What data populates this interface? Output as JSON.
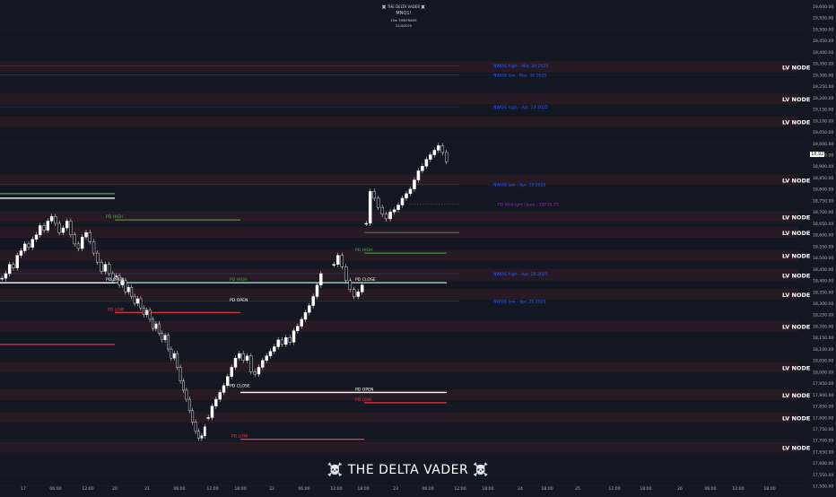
{
  "header": {
    "title": "☠️ THE DELTA VADER ☠️",
    "symbol": "MNQ1!",
    "timeframe": "15m TIMEFRAME",
    "date": "22/4/2025"
  },
  "brand": "☠️ THE DELTA VADER ☠️",
  "colors": {
    "background": "#131722",
    "candle": "#ffffff",
    "green_level": "#4caf50",
    "red_level": "#f23645",
    "white_level": "#ffffff",
    "blue_text": "#2962ff",
    "purple": "#9c27b0",
    "lv_zone": "#3b1d27",
    "grid": "#1e222d"
  },
  "chart_data": {
    "type": "candlestick",
    "symbol": "MNQ1!",
    "timeframe": "15m",
    "ylim": [
      17500,
      19600
    ],
    "y_ticks": [
      "19,600.00",
      "19,550.00",
      "19,500.00",
      "19,450.00",
      "19,400.00",
      "19,350.00",
      "19,300.00",
      "19,250.00",
      "19,200.00",
      "19,150.00",
      "19,100.00",
      "19,050.00",
      "19,000.00",
      "18,950.00",
      "18,900.00",
      "18,850.00",
      "18,800.00",
      "18,750.00",
      "18,700.00",
      "18,650.00",
      "18,600.00",
      "18,550.00",
      "18,500.00",
      "18,450.00",
      "18,400.00",
      "18,350.00",
      "18,300.00",
      "18,250.00",
      "18,200.00",
      "18,150.00",
      "18,100.00",
      "18,050.00",
      "18,000.00",
      "17,950.00",
      "17,900.00",
      "17,850.00",
      "17,800.00",
      "17,750.00",
      "17,700.00",
      "17,650.00",
      "17,600.00",
      "17,550.00",
      "17,500.00"
    ],
    "x_ticks": [
      "17",
      "06:00",
      "12:00",
      "20",
      "21",
      "06:00",
      "12:00",
      "18:00",
      "22",
      "06:00",
      "12:00",
      "18:00",
      "23",
      "06:00",
      "12:00",
      "18:00",
      "24",
      "18:00",
      "25",
      "12:00",
      "18:00",
      "26",
      "06:00",
      "12:00",
      "18:00",
      "12:00",
      "18:00",
      "27",
      "28",
      "06:00"
    ],
    "last_price": "18,92",
    "price_path": [
      [
        18410,
        18430,
        18470,
        18455,
        18510,
        18530,
        18560,
        18545,
        18580,
        18600,
        18640,
        18620,
        18660,
        18680,
        18650,
        18610,
        18630,
        18660,
        18600,
        18560,
        18540,
        18590,
        18610,
        18570,
        18520,
        18480,
        18440,
        18470,
        18430,
        18400
      ],
      [
        18420,
        18380,
        18400,
        18350,
        18370,
        18330,
        18300,
        18320,
        18280,
        18250,
        18270,
        18230,
        18190,
        18210,
        18170,
        18140,
        18160,
        18100,
        18060,
        18080,
        18020,
        17960,
        17920,
        17880,
        17830,
        17780,
        17740,
        17710,
        17720,
        17760
      ],
      [
        17800,
        17850,
        17880,
        17910,
        17940,
        17980,
        18020,
        18060,
        18080,
        18050,
        18070,
        18000,
        17990,
        18020,
        18050,
        18070,
        18090,
        18110,
        18140,
        18120,
        18150,
        18130,
        18180,
        18200,
        18230,
        18260,
        18290,
        18330,
        18380,
        18430
      ],
      [
        18470,
        18510,
        18460,
        18400,
        18360,
        18330,
        18350,
        18380
      ],
      [
        18650,
        18790,
        18760,
        18720,
        18690,
        18670,
        18700,
        18710,
        18730,
        18760,
        18780,
        18800,
        18840,
        18880,
        18900,
        18930,
        18950,
        18970,
        18990,
        18960,
        18920
      ]
    ],
    "lv_nodes": [
      {
        "label": "LV NODE",
        "price": 19335
      },
      {
        "label": "LV NODE",
        "price": 19195
      },
      {
        "label": "LV NODE",
        "price": 19095
      },
      {
        "label": "LV NODE",
        "price": 18840
      },
      {
        "label": "LV NODE",
        "price": 18680
      },
      {
        "label": "LV NODE",
        "price": 18610
      },
      {
        "label": "LV NODE",
        "price": 18510
      },
      {
        "label": "LV NODE",
        "price": 18425
      },
      {
        "label": "LV NODE",
        "price": 18340
      },
      {
        "label": "LV NODE",
        "price": 18200
      },
      {
        "label": "LV NODE",
        "price": 18020
      },
      {
        "label": "LV NODE",
        "price": 17900
      },
      {
        "label": "LV NODE",
        "price": 17800
      },
      {
        "label": "LV NODE",
        "price": 17670
      }
    ],
    "blue_labels": [
      {
        "text": "NWOG high - Mar. 30 2025",
        "price": 19340
      },
      {
        "text": "NWOG low - Mar. 30 2025",
        "price": 19300
      },
      {
        "text": "NWOG high - Apr. 13 2025",
        "price": 19160
      },
      {
        "text": "NWOG low - Apr. 13 2025",
        "price": 18820
      },
      {
        "text": "NWOG high - Apr. 20 2025",
        "price": 18430
      },
      {
        "text": "NWOG low - Apr. 20 2025",
        "price": 18310
      }
    ],
    "purple_label": {
      "text": "PD Midnight Open : 18735.75",
      "price": 18735
    },
    "pd_labels": [
      {
        "text": "PD HIGH",
        "color": "green",
        "price": 18665
      },
      {
        "text": "PD HIGH",
        "color": "green",
        "price": 18520
      },
      {
        "text": "PD HIGH",
        "color": "green",
        "price": 18390
      },
      {
        "text": "PD OPEN",
        "color": "white",
        "price": 18390
      },
      {
        "text": "PD OPEN",
        "color": "white",
        "price": 18300
      },
      {
        "text": "PD CLOSE",
        "color": "white",
        "price": 18390
      },
      {
        "text": "PD LOW",
        "color": "red",
        "price": 18260
      },
      {
        "text": "PD CLOSE",
        "color": "white",
        "price": 17925
      },
      {
        "text": "PD OPEN",
        "color": "white",
        "price": 17910
      },
      {
        "text": "PD LOW",
        "color": "red",
        "price": 17865
      },
      {
        "text": "PD LOW",
        "color": "red",
        "price": 17705
      }
    ]
  }
}
